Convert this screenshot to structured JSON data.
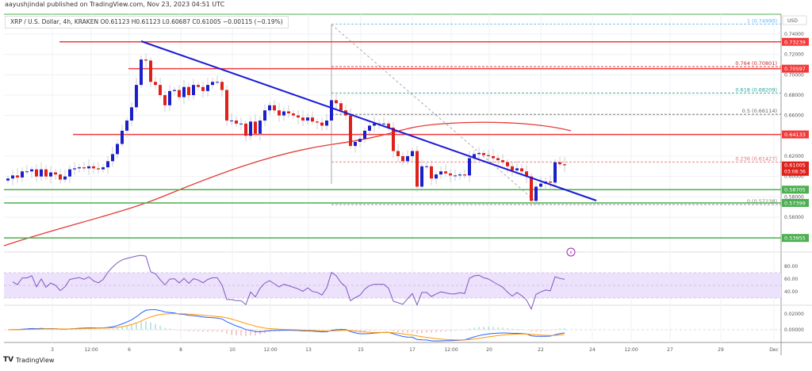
{
  "header": {
    "published": "aayushjindal published on TradingView.com, Nov 23, 2023 04:51 UTC",
    "symbol_line": "XRP / U.S. Dollar, 4h, KRAKEN  O0.61123  H0.61123  L0.60687  C0.61005  −0.00115 (−0.19%)"
  },
  "footer": {
    "logo_text": "TradingView",
    "logo_mark": "TV"
  },
  "colors": {
    "bull": "#1c1fc9",
    "bear": "#e0201b",
    "trendline": "#1a1ad6",
    "resistance": "#f23a3a",
    "support": "#4caf50",
    "ma": "#e53935",
    "rsi": "#7e57c2",
    "rsi_band": "#ede2fb",
    "macd": "#2962ff",
    "signal": "#ff9800"
  },
  "chart_data": {
    "type": "candlestick",
    "currency_label": "USD",
    "price_ticks": [
      "0.74000",
      "0.72000",
      "0.70000",
      "0.68000",
      "0.66000",
      "0.62000",
      "0.60000",
      "0.58000",
      "0.56000"
    ],
    "x_ticks": [
      "3",
      "12:00",
      "6",
      "8",
      "10",
      "12:00",
      "13",
      "15",
      "17",
      "12:00",
      "20",
      "22",
      "24",
      "12:00",
      "27",
      "29",
      "Dec"
    ],
    "closes": [
      0.598,
      0.601,
      0.599,
      0.605,
      0.605,
      0.607,
      0.6,
      0.607,
      0.6,
      0.604,
      0.602,
      0.597,
      0.6,
      0.607,
      0.608,
      0.609,
      0.608,
      0.61,
      0.608,
      0.607,
      0.609,
      0.615,
      0.622,
      0.632,
      0.645,
      0.655,
      0.668,
      0.69,
      0.715,
      0.714,
      0.693,
      0.69,
      0.68,
      0.67,
      0.684,
      0.685,
      0.678,
      0.688,
      0.68,
      0.69,
      0.688,
      0.684,
      0.69,
      0.693,
      0.693,
      0.685,
      0.655,
      0.655,
      0.652,
      0.652,
      0.64,
      0.654,
      0.642,
      0.655,
      0.665,
      0.67,
      0.665,
      0.66,
      0.664,
      0.662,
      0.66,
      0.658,
      0.655,
      0.658,
      0.654,
      0.653,
      0.65,
      0.655,
      0.675,
      0.672,
      0.665,
      0.66,
      0.63,
      0.634,
      0.637,
      0.645,
      0.65,
      0.652,
      0.652,
      0.652,
      0.648,
      0.625,
      0.62,
      0.615,
      0.62,
      0.625,
      0.59,
      0.61,
      0.61,
      0.598,
      0.602,
      0.605,
      0.603,
      0.601,
      0.601,
      0.602,
      0.601,
      0.618,
      0.622,
      0.623,
      0.621,
      0.62,
      0.618,
      0.616,
      0.614,
      0.61,
      0.606,
      0.608,
      0.605,
      0.6,
      0.576,
      0.59,
      0.593,
      0.595,
      0.594,
      0.614,
      0.612,
      0.611
    ],
    "horizontal_levels": [
      {
        "price": 0.73239,
        "label": "0.73239",
        "kind": "resistance"
      },
      {
        "price": 0.70597,
        "label": "0.70597",
        "kind": "resistance"
      },
      {
        "price": 0.64133,
        "label": "0.64133",
        "kind": "resistance"
      },
      {
        "price": 0.58705,
        "label": "0.58705",
        "kind": "support"
      },
      {
        "price": 0.57399,
        "label": "0.57399",
        "kind": "support"
      },
      {
        "price": 0.53955,
        "label": "0.53955",
        "kind": "support"
      }
    ],
    "fib_levels": [
      {
        "price": 0.7499,
        "label": "1 (0.74990)",
        "color": "#64b5f6"
      },
      {
        "price": 0.70801,
        "label": "0.764 (0.70801)",
        "color": "#c62828"
      },
      {
        "price": 0.68209,
        "label": "0.618 (0.68209)",
        "color": "#26a69a"
      },
      {
        "price": 0.66114,
        "label": "0.5 (0.66114)",
        "color": "#666666"
      },
      {
        "price": 0.61427,
        "label": "0.236 (0.61427)",
        "color": "#e57373"
      },
      {
        "price": 0.57238,
        "label": "0 (0.57238)",
        "color": "#888888"
      }
    ],
    "current_price": {
      "label": "0.61005",
      "countdown": "03:08:36"
    },
    "rsi_ticks": [
      "80.00",
      "60.00",
      "40.00"
    ],
    "macd_ticks": [
      "0.02000",
      "0.00000"
    ]
  }
}
